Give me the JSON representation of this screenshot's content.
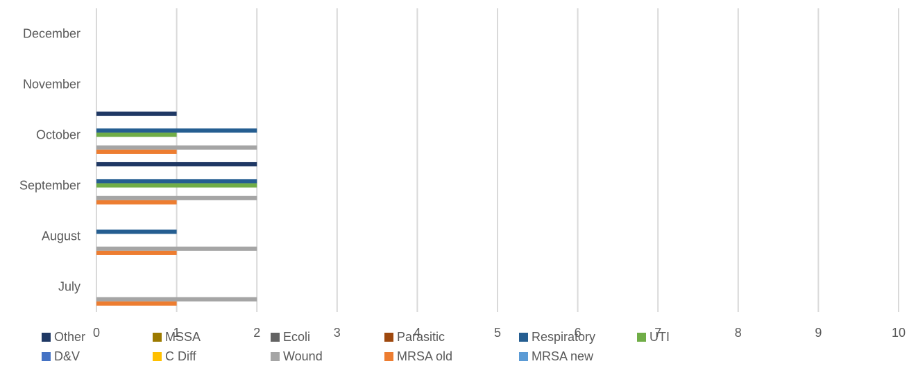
{
  "chart_data": {
    "type": "bar",
    "orientation": "horizontal",
    "categories": [
      "July",
      "August",
      "September",
      "October",
      "November",
      "December"
    ],
    "series": [
      {
        "name": "Other",
        "color": "#1f3864",
        "values": [
          0,
          0,
          2,
          1,
          0,
          0
        ]
      },
      {
        "name": "MSSA",
        "color": "#9c7a00",
        "values": [
          0,
          0,
          0,
          0,
          0,
          0
        ]
      },
      {
        "name": "Ecoli",
        "color": "#636363",
        "values": [
          0,
          0,
          0,
          0,
          0,
          0
        ]
      },
      {
        "name": "Parasitic",
        "color": "#9e480e",
        "values": [
          0,
          0,
          0,
          0,
          0,
          0
        ]
      },
      {
        "name": "Respiratory",
        "color": "#255e91",
        "values": [
          0,
          1,
          2,
          2,
          0,
          0
        ]
      },
      {
        "name": "UTI",
        "color": "#70ad47",
        "values": [
          0,
          0,
          2,
          1,
          0,
          0
        ]
      },
      {
        "name": "D&V",
        "color": "#4472c4",
        "values": [
          0,
          0,
          0,
          0,
          0,
          0
        ]
      },
      {
        "name": "C Diff",
        "color": "#ffc000",
        "values": [
          0,
          0,
          0,
          0,
          0,
          0
        ]
      },
      {
        "name": "Wound",
        "color": "#a5a5a5",
        "values": [
          2,
          2,
          2,
          2,
          0,
          0
        ]
      },
      {
        "name": "MRSA old",
        "color": "#ed7d31",
        "values": [
          1,
          1,
          1,
          1,
          0,
          0
        ]
      },
      {
        "name": "MRSA new",
        "color": "#5b9bd5",
        "values": [
          0,
          0,
          0,
          0,
          0,
          0
        ]
      }
    ],
    "xlim": [
      0,
      10
    ],
    "x_ticks": [
      0,
      1,
      2,
      3,
      4,
      5,
      6,
      7,
      8,
      9,
      10
    ],
    "grid": true,
    "legend_position": "bottom",
    "title": "",
    "xlabel": "",
    "ylabel": ""
  }
}
